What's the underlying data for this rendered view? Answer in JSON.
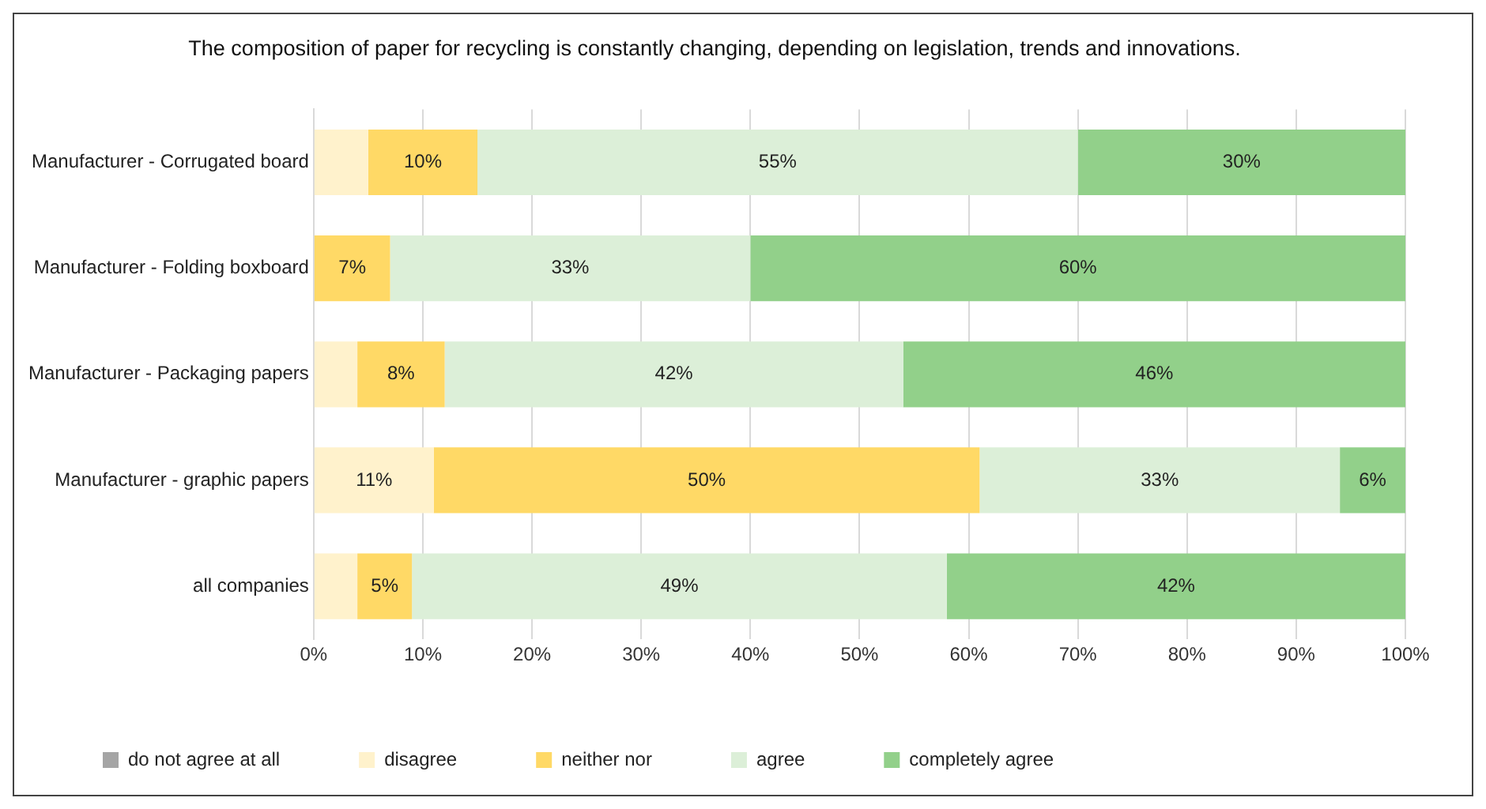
{
  "chart_data": {
    "type": "bar",
    "orientation": "horizontal",
    "stacked": true,
    "title": "The composition of paper for recycling is constantly changing, depending on legislation, trends and innovations.",
    "categories": [
      "Manufacturer - Corrugated board",
      "Manufacturer - Folding boxboard",
      "Manufacturer - Packaging papers",
      "Manufacturer - graphic papers",
      "all companies"
    ],
    "series": [
      {
        "name": "do not agree at all",
        "color": "#a5a5a5",
        "values": [
          0,
          0,
          0,
          0,
          0
        ],
        "value_labels": [
          null,
          null,
          null,
          null,
          null
        ]
      },
      {
        "name": "disagree",
        "color": "#fff2cc",
        "values": [
          5,
          0,
          4,
          11,
          4
        ],
        "value_labels": [
          null,
          null,
          null,
          "11%",
          null
        ]
      },
      {
        "name": "neither nor",
        "color": "#ffd966",
        "values": [
          10,
          7,
          8,
          50,
          5
        ],
        "value_labels": [
          "10%",
          "7%",
          "8%",
          "50%",
          "5%"
        ]
      },
      {
        "name": "agree",
        "color": "#dcefd8",
        "values": [
          55,
          33,
          42,
          33,
          49
        ],
        "value_labels": [
          "55%",
          "33%",
          "42%",
          "33%",
          "49%"
        ]
      },
      {
        "name": "completely agree",
        "color": "#92d08a",
        "values": [
          30,
          60,
          46,
          6,
          42
        ],
        "value_labels": [
          "30%",
          "60%",
          "46%",
          "6%",
          "42%"
        ]
      }
    ],
    "xlim": [
      0,
      100
    ],
    "xticks": [
      {
        "value": 0,
        "label": "0%"
      },
      {
        "value": 10,
        "label": "10%"
      },
      {
        "value": 20,
        "label": "20%"
      },
      {
        "value": 30,
        "label": "30%"
      },
      {
        "value": 40,
        "label": "40%"
      },
      {
        "value": 50,
        "label": "50%"
      },
      {
        "value": 60,
        "label": "60%"
      },
      {
        "value": 70,
        "label": "70%"
      },
      {
        "value": 80,
        "label": "80%"
      },
      {
        "value": 90,
        "label": "90%"
      },
      {
        "value": 100,
        "label": "100%"
      }
    ],
    "grid": "x",
    "legend": "bottom"
  }
}
